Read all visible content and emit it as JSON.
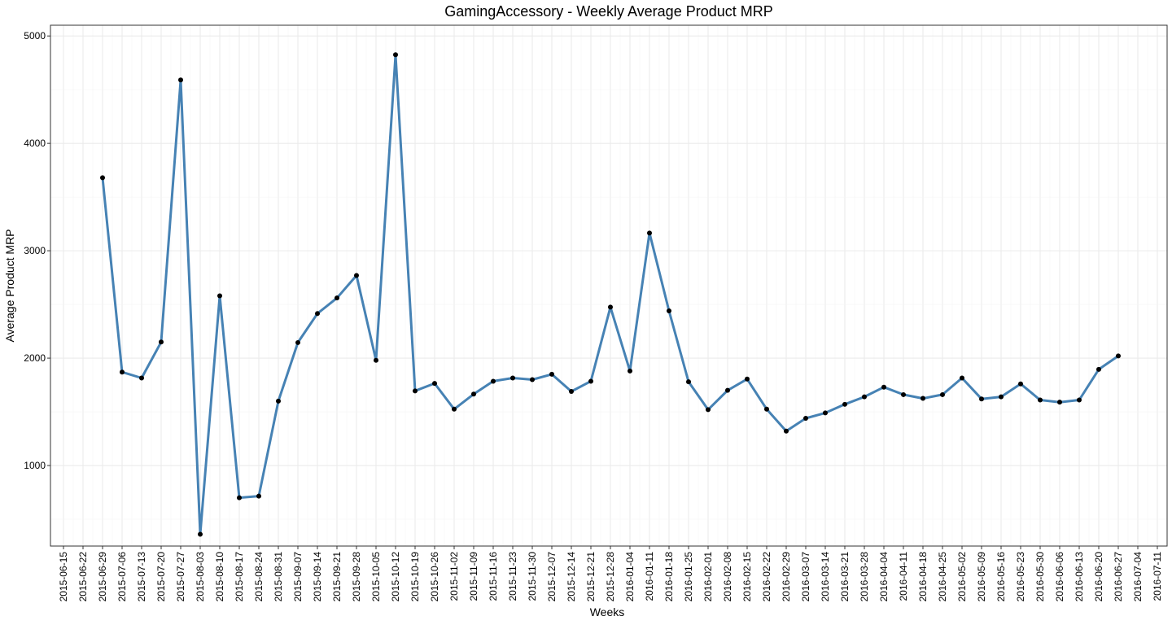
{
  "chart_data": {
    "type": "line",
    "title": "GamingAccessory - Weekly Average Product MRP",
    "xlabel": "Weeks",
    "ylabel": "Average Product MRP",
    "line_color": "#4682B4",
    "point_color": "#000000",
    "grid": true,
    "ylim": [
      250,
      5100
    ],
    "y_ticks": [
      1000,
      2000,
      3000,
      4000,
      5000
    ],
    "x_ticks": [
      "2015-06-15",
      "2015-06-22",
      "2015-06-29",
      "2015-07-06",
      "2015-07-13",
      "2015-07-20",
      "2015-07-27",
      "2015-08-03",
      "2015-08-10",
      "2015-08-17",
      "2015-08-24",
      "2015-08-31",
      "2015-09-07",
      "2015-09-14",
      "2015-09-21",
      "2015-09-28",
      "2015-10-05",
      "2015-10-12",
      "2015-10-19",
      "2015-10-26",
      "2015-11-02",
      "2015-11-09",
      "2015-11-16",
      "2015-11-23",
      "2015-11-30",
      "2015-12-07",
      "2015-12-14",
      "2015-12-21",
      "2015-12-28",
      "2016-01-04",
      "2016-01-11",
      "2016-01-18",
      "2016-01-25",
      "2016-02-01",
      "2016-02-08",
      "2016-02-15",
      "2016-02-22",
      "2016-02-29",
      "2016-03-07",
      "2016-03-14",
      "2016-03-21",
      "2016-03-28",
      "2016-04-04",
      "2016-04-11",
      "2016-04-18",
      "2016-04-25",
      "2016-05-02",
      "2016-05-09",
      "2016-05-16",
      "2016-05-23",
      "2016-05-30",
      "2016-06-06",
      "2016-06-13",
      "2016-06-20",
      "2016-06-27",
      "2016-07-04",
      "2016-07-11"
    ],
    "x": [
      "2015-06-29",
      "2015-07-06",
      "2015-07-13",
      "2015-07-20",
      "2015-07-27",
      "2015-08-03",
      "2015-08-10",
      "2015-08-17",
      "2015-08-24",
      "2015-08-31",
      "2015-09-07",
      "2015-09-14",
      "2015-09-21",
      "2015-09-28",
      "2015-10-05",
      "2015-10-12",
      "2015-10-19",
      "2015-10-26",
      "2015-11-02",
      "2015-11-09",
      "2015-11-16",
      "2015-11-23",
      "2015-11-30",
      "2015-12-07",
      "2015-12-14",
      "2015-12-21",
      "2015-12-28",
      "2016-01-04",
      "2016-01-11",
      "2016-01-18",
      "2016-01-25",
      "2016-02-01",
      "2016-02-08",
      "2016-02-15",
      "2016-02-22",
      "2016-02-29",
      "2016-03-07",
      "2016-03-14",
      "2016-03-21",
      "2016-03-28",
      "2016-04-04",
      "2016-04-11",
      "2016-04-18",
      "2016-04-25",
      "2016-05-02",
      "2016-05-09",
      "2016-05-16",
      "2016-05-23",
      "2016-05-30",
      "2016-06-06",
      "2016-06-13",
      "2016-06-20",
      "2016-06-27"
    ],
    "values": [
      3680,
      1870,
      1815,
      2150,
      4590,
      360,
      2580,
      700,
      715,
      1600,
      2145,
      2415,
      2560,
      2770,
      1980,
      4825,
      1695,
      1765,
      1525,
      1665,
      1785,
      1815,
      1800,
      1850,
      1690,
      1785,
      2475,
      1880,
      3165,
      2440,
      1780,
      1520,
      1700,
      1805,
      1525,
      1320,
      1440,
      1490,
      1570,
      1640,
      1730,
      1660,
      1625,
      1660,
      1815,
      1620,
      1640,
      1760,
      1610,
      1590,
      1610,
      1895,
      2020
    ]
  }
}
